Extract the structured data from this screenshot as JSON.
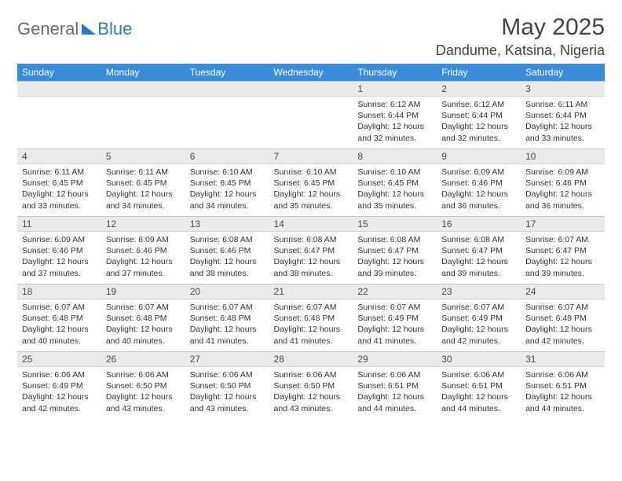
{
  "brand": {
    "general": "General",
    "blue": "Blue"
  },
  "header": {
    "title": "May 2025",
    "location": "Dandume, Katsina, Nigeria"
  },
  "columns": [
    "Sunday",
    "Monday",
    "Tuesday",
    "Wednesday",
    "Thursday",
    "Friday",
    "Saturday"
  ],
  "labels": {
    "sunrise": "Sunrise:",
    "sunset": "Sunset:",
    "daylight": "Daylight:"
  },
  "colors": {
    "header_bg": "#3a8bd8",
    "header_text": "#ffffff",
    "daynum_bg": "#e9eaeb",
    "daynum_border": "#c8c8c8",
    "body_text": "#333333",
    "brand_gray": "#6b6b6b",
    "brand_blue": "#2f78c2"
  },
  "days": {
    "1": {
      "sunrise": "6:12 AM",
      "sunset": "6:44 PM",
      "daylight": "12 hours and 32 minutes."
    },
    "2": {
      "sunrise": "6:12 AM",
      "sunset": "6:44 PM",
      "daylight": "12 hours and 32 minutes."
    },
    "3": {
      "sunrise": "6:11 AM",
      "sunset": "6:44 PM",
      "daylight": "12 hours and 33 minutes."
    },
    "4": {
      "sunrise": "6:11 AM",
      "sunset": "6:45 PM",
      "daylight": "12 hours and 33 minutes."
    },
    "5": {
      "sunrise": "6:11 AM",
      "sunset": "6:45 PM",
      "daylight": "12 hours and 34 minutes."
    },
    "6": {
      "sunrise": "6:10 AM",
      "sunset": "6:45 PM",
      "daylight": "12 hours and 34 minutes."
    },
    "7": {
      "sunrise": "6:10 AM",
      "sunset": "6:45 PM",
      "daylight": "12 hours and 35 minutes."
    },
    "8": {
      "sunrise": "6:10 AM",
      "sunset": "6:45 PM",
      "daylight": "12 hours and 35 minutes."
    },
    "9": {
      "sunrise": "6:09 AM",
      "sunset": "6:46 PM",
      "daylight": "12 hours and 36 minutes."
    },
    "10": {
      "sunrise": "6:09 AM",
      "sunset": "6:46 PM",
      "daylight": "12 hours and 36 minutes."
    },
    "11": {
      "sunrise": "6:09 AM",
      "sunset": "6:46 PM",
      "daylight": "12 hours and 37 minutes."
    },
    "12": {
      "sunrise": "6:09 AM",
      "sunset": "6:46 PM",
      "daylight": "12 hours and 37 minutes."
    },
    "13": {
      "sunrise": "6:08 AM",
      "sunset": "6:46 PM",
      "daylight": "12 hours and 38 minutes."
    },
    "14": {
      "sunrise": "6:08 AM",
      "sunset": "6:47 PM",
      "daylight": "12 hours and 38 minutes."
    },
    "15": {
      "sunrise": "6:08 AM",
      "sunset": "6:47 PM",
      "daylight": "12 hours and 39 minutes."
    },
    "16": {
      "sunrise": "6:08 AM",
      "sunset": "6:47 PM",
      "daylight": "12 hours and 39 minutes."
    },
    "17": {
      "sunrise": "6:07 AM",
      "sunset": "6:47 PM",
      "daylight": "12 hours and 39 minutes."
    },
    "18": {
      "sunrise": "6:07 AM",
      "sunset": "6:48 PM",
      "daylight": "12 hours and 40 minutes."
    },
    "19": {
      "sunrise": "6:07 AM",
      "sunset": "6:48 PM",
      "daylight": "12 hours and 40 minutes."
    },
    "20": {
      "sunrise": "6:07 AM",
      "sunset": "6:48 PM",
      "daylight": "12 hours and 41 minutes."
    },
    "21": {
      "sunrise": "6:07 AM",
      "sunset": "6:48 PM",
      "daylight": "12 hours and 41 minutes."
    },
    "22": {
      "sunrise": "6:07 AM",
      "sunset": "6:49 PM",
      "daylight": "12 hours and 41 minutes."
    },
    "23": {
      "sunrise": "6:07 AM",
      "sunset": "6:49 PM",
      "daylight": "12 hours and 42 minutes."
    },
    "24": {
      "sunrise": "6:07 AM",
      "sunset": "6:49 PM",
      "daylight": "12 hours and 42 minutes."
    },
    "25": {
      "sunrise": "6:06 AM",
      "sunset": "6:49 PM",
      "daylight": "12 hours and 42 minutes."
    },
    "26": {
      "sunrise": "6:06 AM",
      "sunset": "6:50 PM",
      "daylight": "12 hours and 43 minutes."
    },
    "27": {
      "sunrise": "6:06 AM",
      "sunset": "6:50 PM",
      "daylight": "12 hours and 43 minutes."
    },
    "28": {
      "sunrise": "6:06 AM",
      "sunset": "6:50 PM",
      "daylight": "12 hours and 43 minutes."
    },
    "29": {
      "sunrise": "6:06 AM",
      "sunset": "6:51 PM",
      "daylight": "12 hours and 44 minutes."
    },
    "30": {
      "sunrise": "6:06 AM",
      "sunset": "6:51 PM",
      "daylight": "12 hours and 44 minutes."
    },
    "31": {
      "sunrise": "6:06 AM",
      "sunset": "6:51 PM",
      "daylight": "12 hours and 44 minutes."
    }
  },
  "layout": {
    "first_day_column_index": 4,
    "days_in_month": 31,
    "weeks": 5
  }
}
